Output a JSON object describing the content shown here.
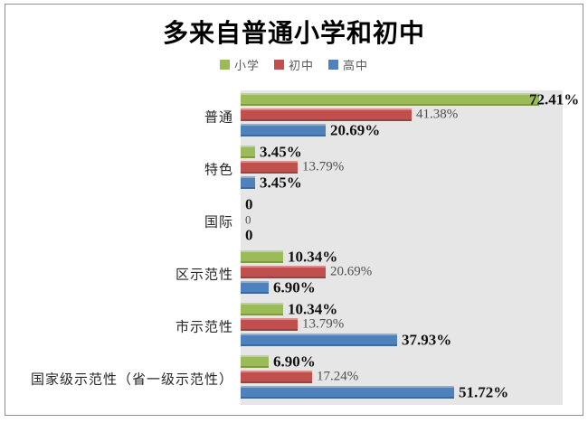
{
  "chart_data": {
    "type": "bar",
    "orientation": "horizontal",
    "title": "多来自普通小学和初中",
    "categories": [
      "普通",
      "特色",
      "国际",
      "区示范性",
      "市示范性",
      "国家级示范性（省一级示范性）"
    ],
    "series": [
      {
        "name": "小学",
        "color": "#9BBB59",
        "label_style": "bold",
        "values": [
          72.41,
          3.45,
          0,
          10.34,
          10.34,
          6.9
        ],
        "labels": [
          "72.41%",
          "3.45%",
          "0",
          "10.34%",
          "10.34%",
          "6.90%"
        ]
      },
      {
        "name": "初中",
        "color": "#C0504D",
        "label_style": "light",
        "values": [
          41.38,
          13.79,
          0,
          20.69,
          13.79,
          17.24
        ],
        "labels": [
          "41.38%",
          "13.79%",
          "0",
          "20.69%",
          "13.79%",
          "17.24%"
        ]
      },
      {
        "name": "高中",
        "color": "#4F81BD",
        "label_style": "bold",
        "values": [
          20.69,
          3.45,
          0,
          6.9,
          37.93,
          51.72
        ],
        "labels": [
          "20.69%",
          "3.45%",
          "0",
          "6.90%",
          "37.93%",
          "51.72%"
        ]
      }
    ],
    "xlim": [
      0,
      78
    ],
    "grid": false,
    "legend_position": "top",
    "plot_bg": "#e6e6e6"
  }
}
